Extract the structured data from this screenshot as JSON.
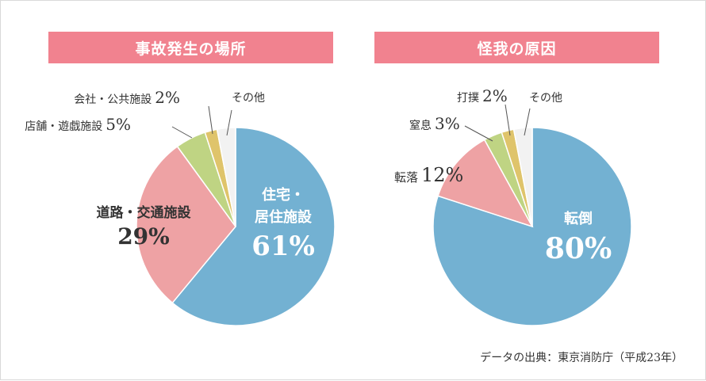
{
  "chart_data": [
    {
      "type": "pie",
      "title": "事故発生の場所",
      "slices": [
        {
          "label_lines": [
            "住宅・",
            "居住施設"
          ],
          "value": 61,
          "value_text": "61%",
          "color": "#73b1d2"
        },
        {
          "label_lines": [
            "道路・交通施設"
          ],
          "value": 29,
          "value_text": "29%",
          "color": "#eea2a4"
        },
        {
          "label_lines": [
            "店舗・遊戯施設"
          ],
          "value": 5,
          "value_text": "5%",
          "color": "#bfd483"
        },
        {
          "label_lines": [
            "会社・公共施設"
          ],
          "value": 2,
          "value_text": "2%",
          "color": "#dfc46b"
        },
        {
          "label_lines": [
            "その他"
          ],
          "value": 3,
          "value_text": "",
          "color": "#f2f2f2"
        }
      ]
    },
    {
      "type": "pie",
      "title": "怪我の原因",
      "slices": [
        {
          "label_lines": [
            "転倒"
          ],
          "value": 80,
          "value_text": "80%",
          "color": "#73b1d2"
        },
        {
          "label_lines": [
            "転落"
          ],
          "value": 12,
          "value_text": "12%",
          "color": "#eea2a4"
        },
        {
          "label_lines": [
            "窒息"
          ],
          "value": 3,
          "value_text": "3%",
          "color": "#bfd483"
        },
        {
          "label_lines": [
            "打撲"
          ],
          "value": 2,
          "value_text": "2%",
          "color": "#dfc46b"
        },
        {
          "label_lines": [
            "その他"
          ],
          "value": 3,
          "value_text": "",
          "color": "#f2f2f2"
        }
      ]
    }
  ],
  "source": "データの出典：東京消防庁（平成23年）"
}
